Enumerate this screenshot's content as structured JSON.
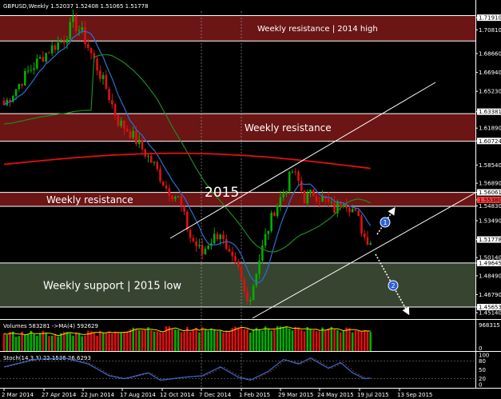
{
  "header": {
    "title": "GBPUSD,Weekly  1.52037 1.52408 1.51065 1.51778"
  },
  "zones": [
    {
      "label": "Weekly resistance | 2014 high",
      "top": 1.721,
      "bottom": 1.698,
      "color": "#6b1515"
    },
    {
      "label": "Weekly resistance",
      "top": 1.632,
      "bottom": 1.607,
      "color": "#6b1515"
    },
    {
      "label": "Weekly resistance",
      "top": 1.5606,
      "bottom": 1.548,
      "color": "#6b1515"
    },
    {
      "label": "Weekly support | 2015 low",
      "top": 1.4965,
      "bottom": 1.4565,
      "color": "#374530"
    }
  ],
  "annotation_year": "2015",
  "markers": [
    {
      "label": "1"
    },
    {
      "label": "2"
    }
  ],
  "price_axis": {
    "min": 1.45,
    "max": 1.725,
    "ticks": [
      "1.71910",
      "1.70810",
      "1.68660",
      "1.66940",
      "1.65230",
      "1.63381",
      "1.61890",
      "1.60724",
      "1.58540",
      "1.56890",
      "1.56061",
      "1.55380",
      "1.54830",
      "1.53490",
      "1.51778",
      "1.50140",
      "1.49645",
      "1.48490",
      "1.46790",
      "1.45653",
      "1.45140"
    ],
    "highlighted": [
      {
        "value": "1.71910",
        "bg": "#ffffff"
      },
      {
        "value": "1.63381",
        "bg": "#ffffff"
      },
      {
        "value": "1.60724",
        "bg": "#ffffff"
      },
      {
        "value": "1.56061",
        "bg": "#ffffff"
      },
      {
        "value": "1.55380",
        "bg": "#ff3b3b"
      },
      {
        "value": "1.51778",
        "bg": "#ffffff"
      },
      {
        "value": "1.49645",
        "bg": "#ffffff"
      },
      {
        "value": "1.45653",
        "bg": "#ffffff"
      }
    ]
  },
  "date_axis": [
    "2 Mar 2014",
    "27 Apr 2014",
    "22 Jun 2014",
    "17 Aug 2014",
    "12 Oct 2014",
    "7 Dec 2014",
    "1 Feb 2015",
    "29 Mar 2015",
    "24 May 2015",
    "19 Jul 2015",
    "13 Sep 2015"
  ],
  "volume_panel": {
    "label": "Volumes 583281  ->MA(4) 592629",
    "ticks": [
      "968315",
      "0"
    ]
  },
  "stoch_panel": {
    "label": "Stoch(14,3,3) 22.1536 26.6293",
    "ticks": [
      "100",
      "80",
      "50",
      "20",
      "0"
    ]
  },
  "colors": {
    "bull": "#00b000",
    "bear": "#e01010",
    "ema_fast": "#2a6fd6",
    "sma_mid": "#1f8a1f",
    "sma_slow": "#e01010",
    "stoch": "#2a6fd6",
    "vol_ma": "#f0e000"
  }
}
